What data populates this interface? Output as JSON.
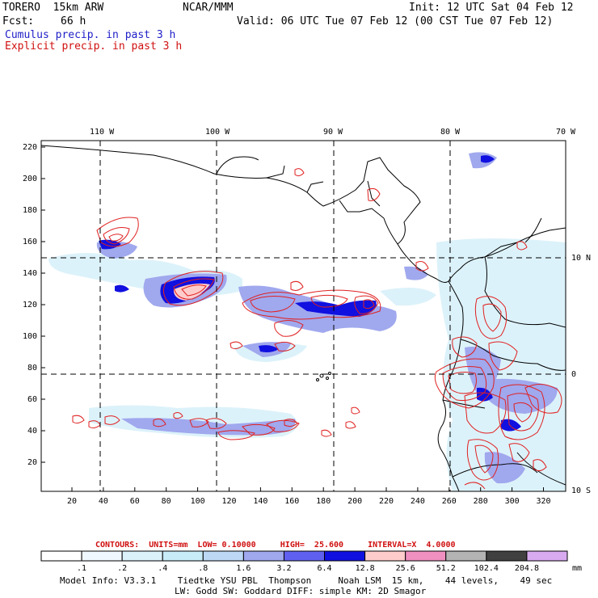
{
  "header": {
    "model": "TORERO  15km ARW",
    "org": "NCAR/MMM",
    "init": "Init: 12 UTC Sat 04 Feb 12",
    "fcst_label": "Fcst:",
    "fcst_value": "66 h",
    "valid": "Valid: 06 UTC Tue 07 Feb 12 (00 CST Tue 07 Feb 12)",
    "legend_cumulus": "Cumulus precip. in past 3 h",
    "legend_explicit": "Explicit precip. in past 3 h"
  },
  "axes": {
    "lon_labels": [
      "110 W",
      "100 W",
      "90 W",
      "80 W",
      "70 W"
    ],
    "lat_labels": [
      "10 N",
      "0",
      "10 S"
    ],
    "y_ticks": [
      "220",
      "200",
      "180",
      "160",
      "140",
      "120",
      "100",
      "80",
      "60",
      "40",
      "20"
    ],
    "x_ticks": [
      "20",
      "40",
      "60",
      "80",
      "100",
      "120",
      "140",
      "160",
      "180",
      "200",
      "220",
      "240",
      "260",
      "280",
      "300",
      "320"
    ]
  },
  "contours_line": "CONTOURS:  UNITS=mm  LOW= 0.10000     HIGH=  25.600     INTERVAL=X  4.0000",
  "colorbar": {
    "labels": [
      ".1",
      ".2",
      ".4",
      ".8",
      "1.6",
      "3.2",
      "6.4",
      "12.8",
      "25.6",
      "51.2",
      "102.4",
      "204.8"
    ],
    "unit": "mm",
    "colors": [
      "#ffffff",
      "#f0f8ff",
      "#dcf2fa",
      "#c8ecf8",
      "#bcd8f4",
      "#a0a8ee",
      "#6060f0",
      "#1010e0",
      "#ffcccc",
      "#f090c0",
      "#b4b4b4",
      "#404040",
      "#d8aaf0"
    ]
  },
  "model_info": {
    "line1": "Model Info: V3.3.1    Tiedtke YSU PBL  Thompson     Noah LSM  15 km,    44 levels,    49 sec",
    "line2": "LW: Godd SW: Goddard DIFF: simple KM: 2D Smagor"
  }
}
